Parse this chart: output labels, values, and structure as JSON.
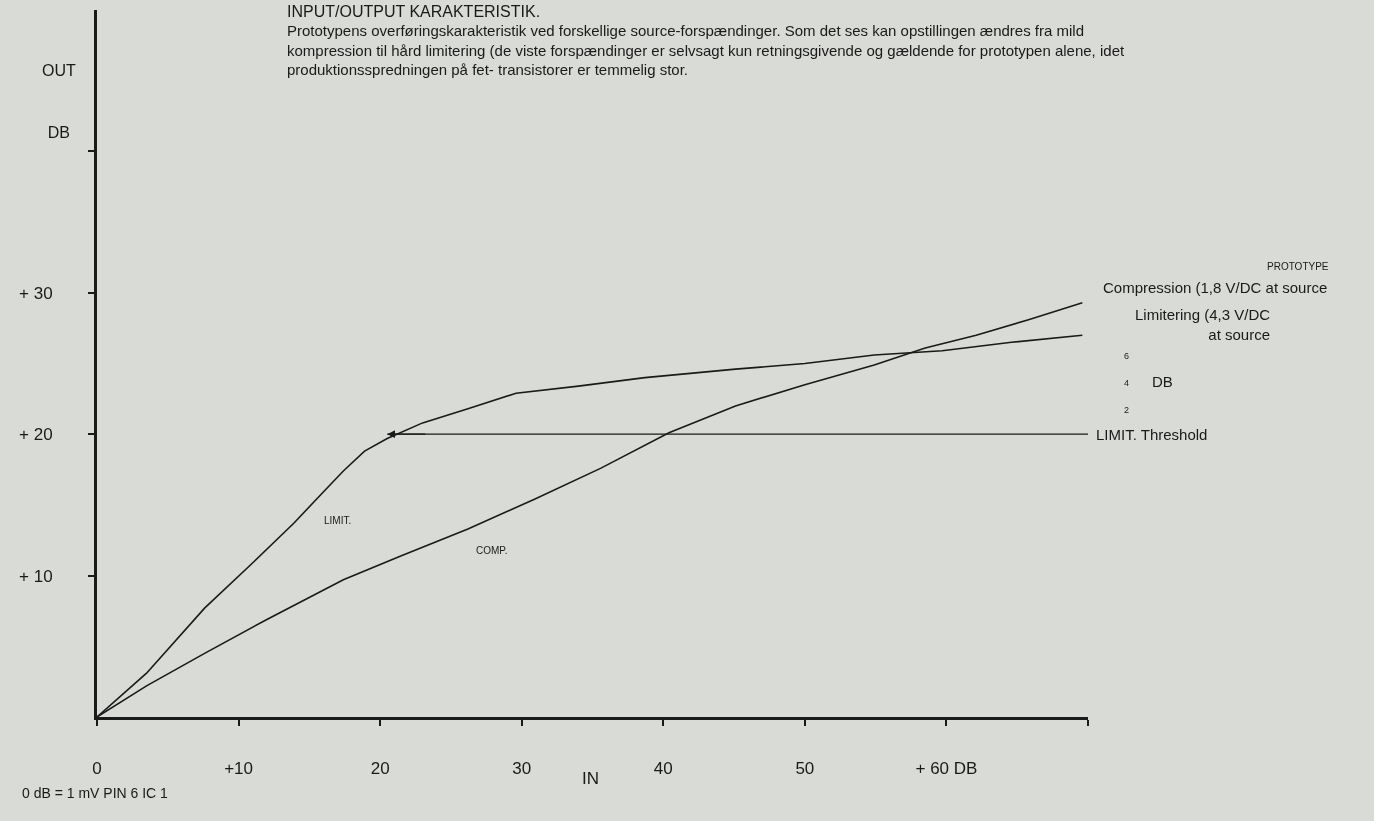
{
  "chart_data": {
    "type": "line",
    "title": "INPUT/OUTPUT KARAKTERISTIK.",
    "subtitle": "Prototypens overføringskarakteristik ved forskellige source-forspændinger. Som det ses kan opstillingen ændres fra mild kompression til hård limitering (de viste forspændinger er selvsagt kun retningsgivende og gældende for prototypen alene, idet produktionsspredningen på fet- transistorer er temmelig stor.",
    "xlabel": "IN",
    "ylabel": "OUT DB",
    "xlim": [
      0,
      70
    ],
    "ylim": [
      0,
      50
    ],
    "xticks": [
      {
        "value": 0,
        "label": "0"
      },
      {
        "value": 10,
        "label": "+10"
      },
      20,
      30,
      40,
      50,
      {
        "value": 60,
        "label": "+ 60 DB"
      },
      {
        "value": 70,
        "label": null
      }
    ],
    "yticks": [
      {
        "value": 10,
        "label": "+ 10"
      },
      {
        "value": 20,
        "label": "+ 20"
      },
      {
        "value": 30,
        "label": "+ 30"
      },
      {
        "value": 40,
        "label": null
      }
    ],
    "grid": false,
    "legend": false,
    "marker": "none",
    "line_style": "solid",
    "series": [
      {
        "name": "LIMIT.",
        "color": "#1a1a1a",
        "x": [
          0,
          3.5,
          7.6,
          11.1,
          13.9,
          15.5,
          17.4,
          18.9,
          20.5,
          23.0,
          26.2,
          29.6,
          34.0,
          38.7,
          45.1,
          50.0,
          54.9,
          59.7,
          64.6,
          69.6
        ],
        "values": [
          0,
          3.1,
          7.7,
          11.0,
          13.7,
          15.4,
          17.4,
          18.8,
          19.7,
          20.8,
          21.8,
          22.9,
          23.4,
          24.0,
          24.6,
          25.0,
          25.6,
          25.9,
          26.5,
          27.0
        ]
      },
      {
        "name": "COMP.",
        "color": "#1a1a1a",
        "x": [
          0,
          3.5,
          7.6,
          12.0,
          17.4,
          21.5,
          26.2,
          30.9,
          35.6,
          40.4,
          45.1,
          50.0,
          54.9,
          58.5,
          62.1,
          65.8,
          69.6
        ],
        "values": [
          0,
          2.2,
          4.5,
          6.9,
          9.7,
          11.4,
          13.3,
          15.4,
          17.6,
          20.1,
          22.0,
          23.5,
          24.9,
          26.1,
          27.0,
          28.1,
          29.3
        ]
      }
    ],
    "annotations": [
      "0 dB = 1 mV PIN 6 IC 1",
      "PROTOTYPE",
      "Compression (1,8 V/DC at source",
      "Limitering (4,3 V/DC at source",
      "6",
      "4",
      "2",
      "DB"
    ],
    "ref_lines": [
      {
        "axis": "y",
        "value": 20,
        "label": "LIMIT. Threshold",
        "color": "#1a1a1a"
      }
    ]
  }
}
